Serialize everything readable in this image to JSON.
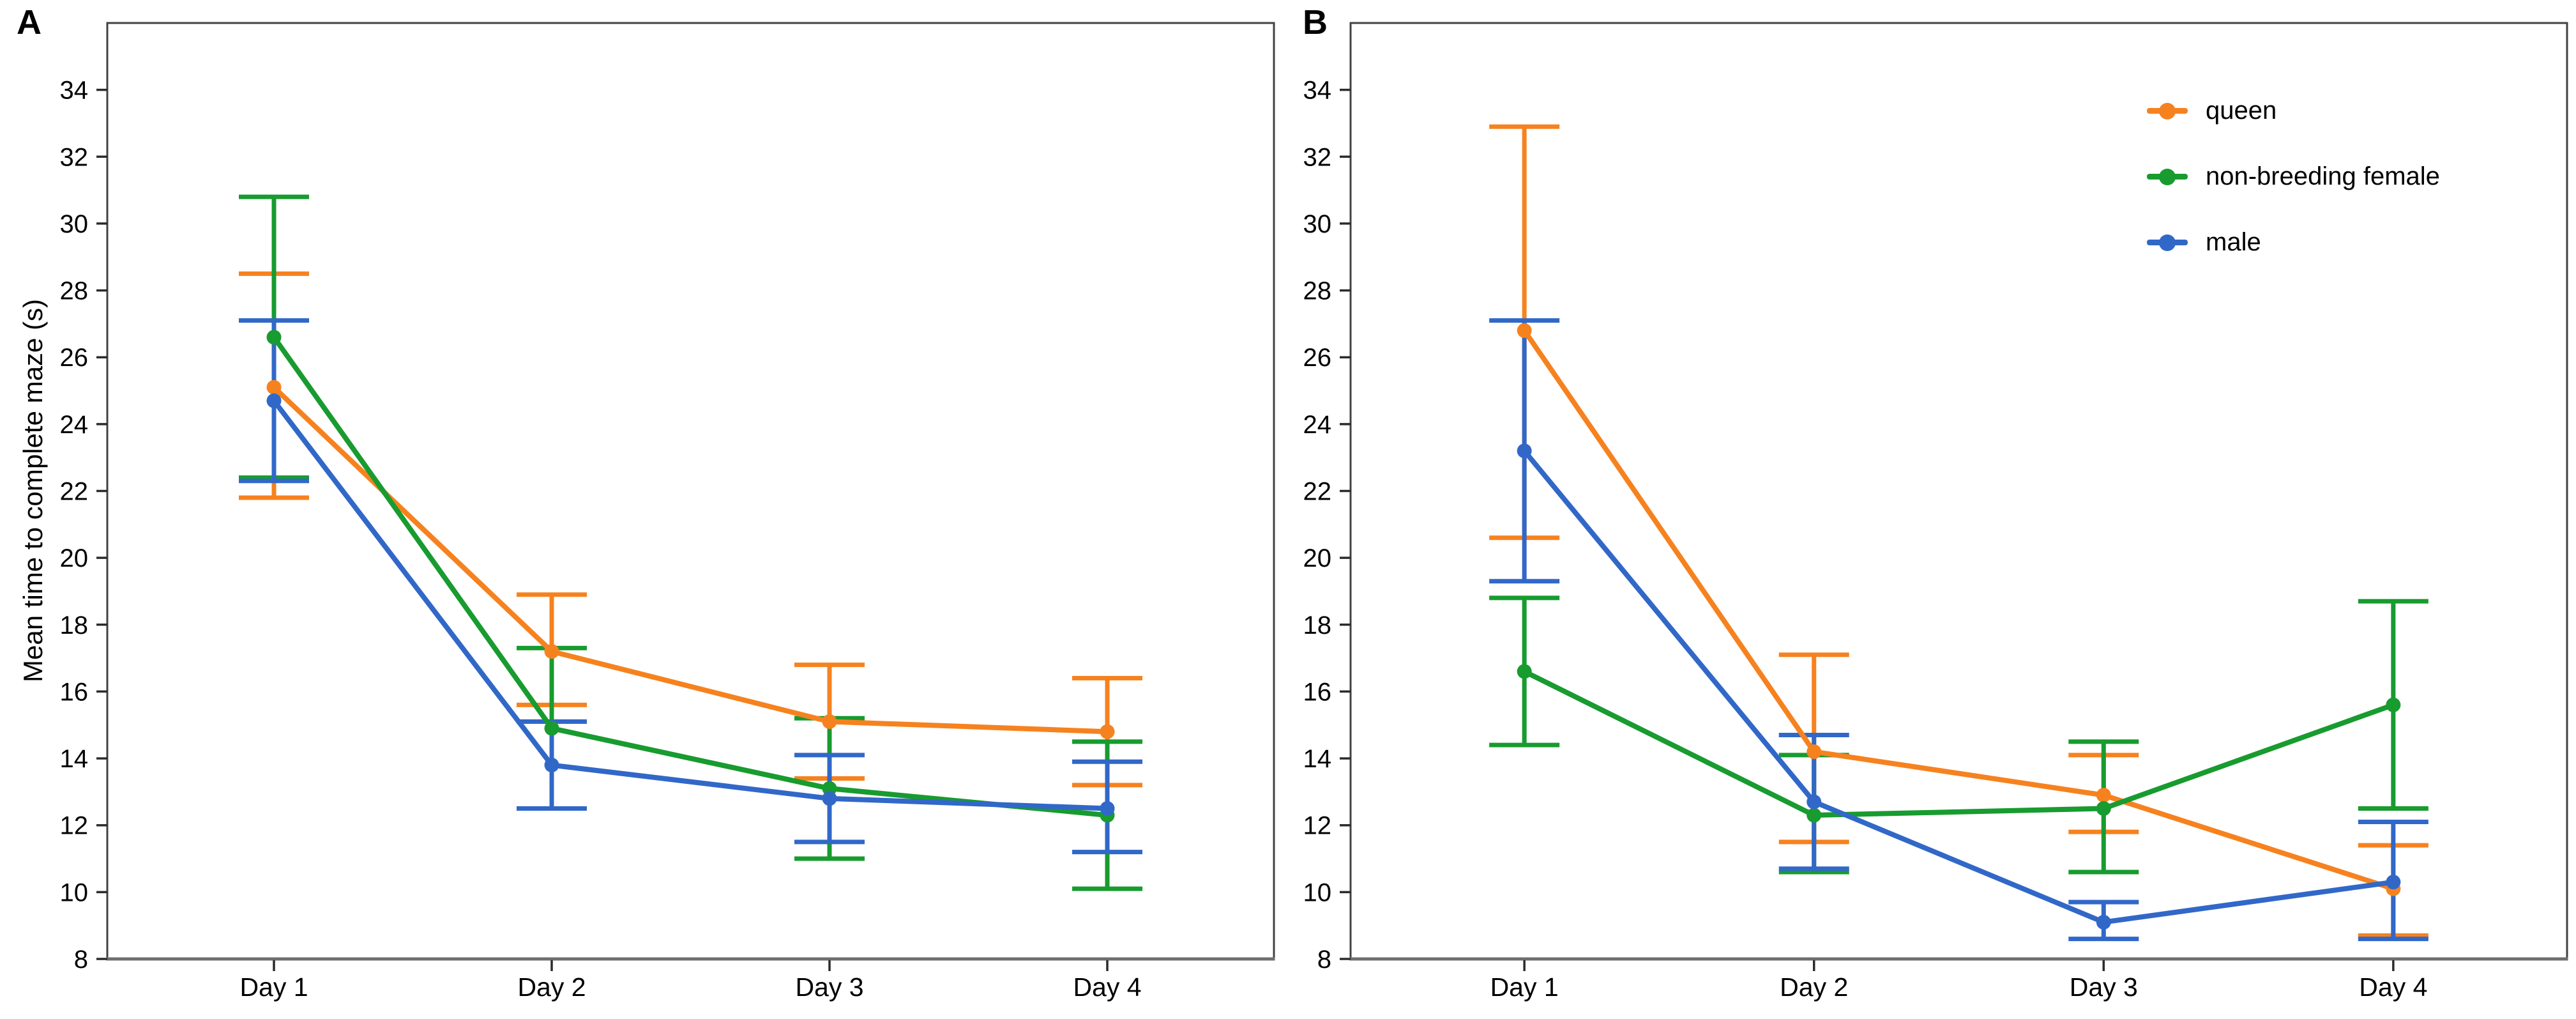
{
  "figure": {
    "background": "#ffffff",
    "axis_color": "#424242",
    "bottom_axis_color": "#6E6E6E",
    "tick_color": "#2B2B2B",
    "text_color": "#000000"
  },
  "chart_data": [
    {
      "type": "line",
      "panel_label": "A",
      "ylabel": "Mean time to complete maze (s)",
      "xlabel": "",
      "categories": [
        "Day 1",
        "Day 2",
        "Day 3",
        "Day 4"
      ],
      "ylim": [
        8,
        36
      ],
      "yticks": [
        8,
        10,
        12,
        14,
        16,
        18,
        20,
        22,
        24,
        26,
        28,
        30,
        32,
        34
      ],
      "grid": false,
      "error_bars": true,
      "legend_position": "none",
      "series": [
        {
          "name": "queen",
          "color": "#F6821F",
          "means": [
            25.1,
            17.2,
            15.1,
            14.8
          ],
          "upper": [
            28.5,
            18.9,
            16.8,
            16.4
          ],
          "lower": [
            21.8,
            15.6,
            13.4,
            13.2
          ]
        },
        {
          "name": "non-breeding female",
          "color": "#189B2F",
          "means": [
            26.6,
            14.9,
            13.1,
            12.3
          ],
          "upper": [
            30.8,
            17.3,
            15.2,
            14.5
          ],
          "lower": [
            22.4,
            12.5,
            11.0,
            10.1
          ]
        },
        {
          "name": "male",
          "color": "#3168C8",
          "means": [
            24.7,
            13.8,
            12.8,
            12.5
          ],
          "upper": [
            27.1,
            15.1,
            14.1,
            13.9
          ],
          "lower": [
            22.3,
            12.5,
            11.5,
            11.2
          ]
        }
      ]
    },
    {
      "type": "line",
      "panel_label": "B",
      "ylabel": "",
      "xlabel": "",
      "categories": [
        "Day 1",
        "Day 2",
        "Day 3",
        "Day 4"
      ],
      "ylim": [
        8,
        36
      ],
      "yticks": [
        8,
        10,
        12,
        14,
        16,
        18,
        20,
        22,
        24,
        26,
        28,
        30,
        32,
        34
      ],
      "grid": false,
      "error_bars": true,
      "legend_position": "top-right",
      "series": [
        {
          "name": "queen",
          "color": "#F6821F",
          "means": [
            26.8,
            14.2,
            12.9,
            10.1
          ],
          "upper": [
            32.9,
            17.1,
            14.1,
            11.4
          ],
          "lower": [
            20.6,
            11.5,
            11.8,
            8.7
          ]
        },
        {
          "name": "non-breeding female",
          "color": "#189B2F",
          "means": [
            16.6,
            12.3,
            12.5,
            15.6
          ],
          "upper": [
            18.8,
            14.1,
            14.5,
            18.7
          ],
          "lower": [
            14.4,
            10.6,
            10.6,
            12.5
          ]
        },
        {
          "name": "male",
          "color": "#3168C8",
          "means": [
            23.2,
            12.7,
            9.1,
            10.3
          ],
          "upper": [
            27.1,
            14.7,
            9.7,
            12.1
          ],
          "lower": [
            19.3,
            10.7,
            8.6,
            8.6
          ]
        }
      ]
    }
  ]
}
